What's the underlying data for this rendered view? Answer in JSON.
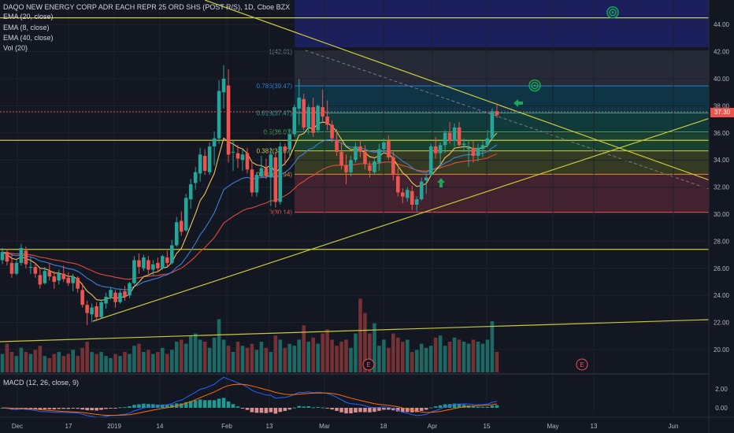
{
  "header": {
    "title": "DAQO NEW ENERGY CORP ADR EACH REPR 25 ORD SHS (POST R/S), 1D, Cboe BZX",
    "indicators": [
      "EMA (20, close)",
      "EMA (8, close)",
      "EMA (40, close)",
      "Vol (20)"
    ]
  },
  "macd_label": "MACD (12, 26, close, 9)",
  "price_axis": {
    "ticks": [
      "44.00",
      "42.00",
      "40.00",
      "38.00",
      "36.00",
      "34.00",
      "32.00",
      "30.00",
      "28.00",
      "26.00",
      "24.00",
      "22.00",
      "20.00"
    ],
    "current_price": "37.30"
  },
  "macd_axis": {
    "ticks": [
      "2.00",
      "0.00"
    ]
  },
  "time_axis": {
    "ticks": [
      "Dec",
      "17",
      "2019",
      "14",
      "Feb",
      "13",
      "Mar",
      "18",
      "Apr",
      "15",
      "May",
      "13",
      "Jun"
    ]
  },
  "fib_labels": [
    "1(42.01)",
    "0.786(39.47)",
    "0.618(37.47)",
    "0.5(36.07)",
    "0.382(34.67)",
    "0.236(32.94)",
    "0(30.14)"
  ],
  "earnings_markers": [
    "E",
    "E"
  ],
  "colors": {
    "background": "#131722",
    "up": "#26a69a",
    "down": "#ef5350",
    "trendline": "#c9c93a",
    "ema20": "#f0c45a",
    "ema8": "#3f7fd8",
    "ema40": "#e24a3b",
    "arrow": "#17a85a"
  },
  "chart_data": {
    "type": "candlestick",
    "price_range": [
      19,
      45.5
    ],
    "candles": [
      [
        26.6,
        27.5,
        26.3,
        27.2
      ],
      [
        27.2,
        27.4,
        26.2,
        26.5
      ],
      [
        26.4,
        27.1,
        25.3,
        25.6
      ],
      [
        25.6,
        26.7,
        25.5,
        26.4
      ],
      [
        26.4,
        27.8,
        26.2,
        27.5
      ],
      [
        27.3,
        27.6,
        26.0,
        26.3
      ],
      [
        26.1,
        26.8,
        25.6,
        26.1
      ],
      [
        26.1,
        26.4,
        25.3,
        25.6
      ],
      [
        25.5,
        26.0,
        24.5,
        24.8
      ],
      [
        24.9,
        26.1,
        24.8,
        25.8
      ],
      [
        25.8,
        26.4,
        25.1,
        25.4
      ],
      [
        25.4,
        25.8,
        24.5,
        25.0
      ],
      [
        25.1,
        25.9,
        24.8,
        25.6
      ],
      [
        25.6,
        26.2,
        25.0,
        25.2
      ],
      [
        25.3,
        25.7,
        24.7,
        24.9
      ],
      [
        24.9,
        25.6,
        24.3,
        25.4
      ],
      [
        25.3,
        25.4,
        24.2,
        24.5
      ],
      [
        24.4,
        24.9,
        23.1,
        23.3
      ],
      [
        23.3,
        23.6,
        21.8,
        22.7
      ],
      [
        22.6,
        23.4,
        22.0,
        23.1
      ],
      [
        23.2,
        23.5,
        22.1,
        22.4
      ],
      [
        22.4,
        23.7,
        22.3,
        23.5
      ],
      [
        23.4,
        24.2,
        23.0,
        23.9
      ],
      [
        23.9,
        24.6,
        23.7,
        24.4
      ],
      [
        24.2,
        24.4,
        23.1,
        23.5
      ],
      [
        23.5,
        24.4,
        23.4,
        24.2
      ],
      [
        24.3,
        24.7,
        23.6,
        23.9
      ],
      [
        24.0,
        25.0,
        23.8,
        24.9
      ],
      [
        24.9,
        26.9,
        24.8,
        26.6
      ],
      [
        26.6,
        27.1,
        25.6,
        26.1
      ],
      [
        26.0,
        27.0,
        25.8,
        26.8
      ],
      [
        26.6,
        26.9,
        25.6,
        25.9
      ],
      [
        25.9,
        26.6,
        25.5,
        26.3
      ],
      [
        26.4,
        26.8,
        25.7,
        26.0
      ],
      [
        26.0,
        27.0,
        25.9,
        26.9
      ],
      [
        26.8,
        27.3,
        26.1,
        26.4
      ],
      [
        26.4,
        28.1,
        26.3,
        27.7
      ],
      [
        27.7,
        29.8,
        27.6,
        29.4
      ],
      [
        29.5,
        30.2,
        28.4,
        28.7
      ],
      [
        28.8,
        31.5,
        28.7,
        31.2
      ],
      [
        31.1,
        32.6,
        30.4,
        32.2
      ],
      [
        32.3,
        33.5,
        31.8,
        33.1
      ],
      [
        33.0,
        34.9,
        32.4,
        34.4
      ],
      [
        34.3,
        34.8,
        32.9,
        33.2
      ],
      [
        33.1,
        35.3,
        32.9,
        35.0
      ],
      [
        35.0,
        36.1,
        33.6,
        35.6
      ],
      [
        35.6,
        39.9,
        35.2,
        39.1
      ],
      [
        39.0,
        41.0,
        37.8,
        40.0
      ],
      [
        39.5,
        40.7,
        33.8,
        34.4
      ],
      [
        34.6,
        35.4,
        33.2,
        34.6
      ],
      [
        34.5,
        35.1,
        33.4,
        34.1
      ],
      [
        34.0,
        34.8,
        33.2,
        34.4
      ],
      [
        34.5,
        34.9,
        33.0,
        33.3
      ],
      [
        33.3,
        33.9,
        31.3,
        31.6
      ],
      [
        31.6,
        33.1,
        31.3,
        32.9
      ],
      [
        32.8,
        34.3,
        32.7,
        33.4
      ],
      [
        33.4,
        34.1,
        32.6,
        32.8
      ],
      [
        32.7,
        34.9,
        30.6,
        34.4
      ],
      [
        34.2,
        34.5,
        30.5,
        30.9
      ],
      [
        30.9,
        35.3,
        30.7,
        35.0
      ],
      [
        35.0,
        35.2,
        33.6,
        34.7
      ],
      [
        34.8,
        36.3,
        34.2,
        35.9
      ],
      [
        35.9,
        38.1,
        35.7,
        37.9
      ],
      [
        37.8,
        40.0,
        36.6,
        38.6
      ],
      [
        38.5,
        38.9,
        36.2,
        36.4
      ],
      [
        36.4,
        38.1,
        35.9,
        37.9
      ],
      [
        37.9,
        38.6,
        35.7,
        36.0
      ],
      [
        36.2,
        38.1,
        36.0,
        38.0
      ],
      [
        37.9,
        39.2,
        36.8,
        37.2
      ],
      [
        37.2,
        38.4,
        36.2,
        36.6
      ],
      [
        36.6,
        36.9,
        35.3,
        35.6
      ],
      [
        35.5,
        36.3,
        34.3,
        34.6
      ],
      [
        34.6,
        35.3,
        33.3,
        33.6
      ],
      [
        33.6,
        34.4,
        32.2,
        33.1
      ],
      [
        33.1,
        34.3,
        32.8,
        34.0
      ],
      [
        34.0,
        35.3,
        33.8,
        35.0
      ],
      [
        35.0,
        35.5,
        34.2,
        34.6
      ],
      [
        34.6,
        35.1,
        33.3,
        33.7
      ],
      [
        33.6,
        33.9,
        32.7,
        33.2
      ],
      [
        33.1,
        34.1,
        32.9,
        33.9
      ],
      [
        33.8,
        35.2,
        33.2,
        34.8
      ],
      [
        34.8,
        35.6,
        34.5,
        35.3
      ],
      [
        35.4,
        35.8,
        34.0,
        34.2
      ],
      [
        34.2,
        34.6,
        32.5,
        32.9
      ],
      [
        32.8,
        33.4,
        31.3,
        31.6
      ],
      [
        31.6,
        31.9,
        30.8,
        31.3
      ],
      [
        31.2,
        32.0,
        30.9,
        31.8
      ],
      [
        31.7,
        32.1,
        30.3,
        30.7
      ],
      [
        30.7,
        31.3,
        30.2,
        31.1
      ],
      [
        31.1,
        32.7,
        31.0,
        32.4
      ],
      [
        32.5,
        33.0,
        31.5,
        32.7
      ],
      [
        32.9,
        35.2,
        32.8,
        35.0
      ],
      [
        35.0,
        35.7,
        34.1,
        34.5
      ],
      [
        34.5,
        35.3,
        33.6,
        35.1
      ],
      [
        35.1,
        36.2,
        34.5,
        36.0
      ],
      [
        36.0,
        36.8,
        35.2,
        35.4
      ],
      [
        35.4,
        36.7,
        35.0,
        36.4
      ],
      [
        36.4,
        36.8,
        34.9,
        35.1
      ],
      [
        35.1,
        35.6,
        34.6,
        35.2
      ],
      [
        34.8,
        35.5,
        33.5,
        34.9
      ],
      [
        34.9,
        35.4,
        33.8,
        34.3
      ],
      [
        34.3,
        35.2,
        33.9,
        34.9
      ],
      [
        34.8,
        35.4,
        34.2,
        35.1
      ],
      [
        35.1,
        36.2,
        34.9,
        35.6
      ],
      [
        35.6,
        37.8,
        35.4,
        37.6
      ],
      [
        37.6,
        38.2,
        37.1,
        37.3
      ]
    ],
    "volume": [
      0.9,
      1.4,
      1.0,
      0.8,
      1.2,
      1.0,
      0.9,
      1.1,
      1.3,
      0.8,
      0.7,
      0.9,
      1.0,
      0.8,
      0.9,
      1.1,
      0.8,
      1.2,
      1.5,
      1.0,
      0.9,
      1.0,
      0.8,
      0.7,
      0.9,
      0.8,
      1.0,
      0.9,
      1.3,
      1.4,
      1.0,
      1.1,
      0.9,
      1.0,
      1.2,
      0.9,
      1.1,
      1.5,
      1.6,
      1.4,
      1.8,
      1.9,
      1.6,
      1.5,
      1.2,
      1.7,
      2.6,
      1.6,
      1.3,
      1.0,
      1.5,
      1.3,
      1.2,
      1.4,
      1.1,
      1.5,
      1.2,
      1.0,
      1.8,
      1.6,
      1.2,
      1.4,
      1.3,
      1.6,
      2.3,
      1.5,
      1.7,
      1.4,
      1.9,
      2.1,
      1.6,
      1.3,
      1.5,
      1.6,
      1.2,
      1.9,
      3.6,
      2.9,
      1.9,
      2.4,
      1.3,
      1.6,
      1.2,
      1.9,
      1.7,
      1.5,
      1.6,
      1.0,
      1.1,
      1.4,
      1.2,
      1.3,
      1.7,
      1.8,
      1.3,
      1.5,
      1.7,
      1.6,
      1.5,
      1.4,
      1.6,
      1.5,
      1.4,
      1.6,
      2.5,
      1.0
    ]
  }
}
